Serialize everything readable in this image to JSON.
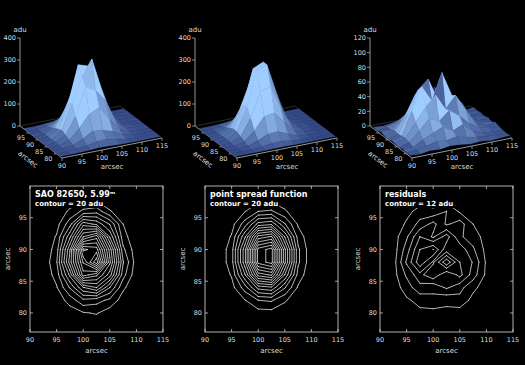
{
  "chart_data": [
    {
      "type": "surface",
      "title": "SAO 82650, 5.99ᵐ",
      "subtitle": "contour = 20 adu",
      "xlabel": "arcsec",
      "ylabel": "arcsec",
      "zlabel": "adu",
      "x": [
        90,
        92.5,
        95,
        97.5,
        100,
        102.5,
        105,
        107.5,
        110,
        112.5,
        115
      ],
      "y": [
        78,
        80,
        82,
        84,
        86,
        88,
        90,
        92,
        94,
        96,
        98
      ],
      "z": [
        [
          1,
          0,
          2,
          3,
          6,
          4,
          2,
          1,
          0,
          1,
          0
        ],
        [
          0,
          2,
          4,
          10,
          18,
          22,
          9,
          3,
          1,
          0,
          1
        ],
        [
          2,
          1,
          8,
          28,
          55,
          48,
          35,
          10,
          2,
          0,
          0
        ],
        [
          1,
          3,
          18,
          62,
          118,
          140,
          80,
          24,
          4,
          1,
          0
        ],
        [
          0,
          5,
          28,
          105,
          230,
          205,
          150,
          48,
          6,
          2,
          1
        ],
        [
          2,
          4,
          38,
          150,
          262,
          335,
          185,
          62,
          9,
          1,
          0
        ],
        [
          1,
          3,
          30,
          138,
          305,
          290,
          172,
          45,
          7,
          0,
          1
        ],
        [
          0,
          4,
          22,
          95,
          200,
          232,
          118,
          28,
          5,
          2,
          0
        ],
        [
          2,
          1,
          12,
          52,
          132,
          115,
          78,
          20,
          3,
          0,
          1
        ],
        [
          0,
          2,
          6,
          24,
          45,
          52,
          22,
          8,
          1,
          1,
          0
        ],
        [
          1,
          0,
          2,
          6,
          14,
          12,
          5,
          2,
          0,
          0,
          0
        ]
      ],
      "xlim": [
        90,
        115
      ],
      "ylim": [
        77,
        100
      ],
      "zlim": [
        0,
        400
      ],
      "xticks": [
        90,
        95,
        100,
        105,
        110,
        115
      ],
      "yticks": [
        80,
        85,
        90,
        95
      ],
      "zticks": [
        0,
        100,
        200,
        300,
        400
      ],
      "contour_step": 20
    },
    {
      "type": "surface",
      "title": "point spread function",
      "subtitle": "contour = 20 adu",
      "xlabel": "arcsec",
      "ylabel": "arcsec",
      "zlabel": "adu",
      "x": [
        90,
        92.5,
        95,
        97.5,
        100,
        102.5,
        105,
        107.5,
        110,
        112.5,
        115
      ],
      "y": [
        78,
        80,
        82,
        84,
        86,
        88,
        90,
        92,
        94,
        96,
        98
      ],
      "z": [
        [
          0,
          0,
          0,
          1,
          2,
          2,
          1,
          0,
          0,
          0,
          0
        ],
        [
          0,
          0,
          1,
          5,
          11,
          12,
          6,
          2,
          0,
          0,
          0
        ],
        [
          0,
          1,
          4,
          19,
          40,
          43,
          23,
          6,
          1,
          0,
          0
        ],
        [
          0,
          1,
          12,
          50,
          108,
          116,
          62,
          17,
          2,
          0,
          0
        ],
        [
          0,
          3,
          22,
          97,
          208,
          223,
          119,
          32,
          4,
          0,
          0
        ],
        [
          0,
          4,
          31,
          134,
          288,
          309,
          165,
          44,
          6,
          0,
          0
        ],
        [
          0,
          4,
          31,
          134,
          288,
          309,
          165,
          44,
          6,
          0,
          0
        ],
        [
          0,
          3,
          22,
          97,
          208,
          223,
          119,
          32,
          4,
          0,
          0
        ],
        [
          0,
          1,
          12,
          50,
          108,
          116,
          62,
          17,
          2,
          0,
          0
        ],
        [
          0,
          1,
          4,
          19,
          40,
          43,
          23,
          6,
          1,
          0,
          0
        ],
        [
          0,
          0,
          1,
          5,
          11,
          12,
          6,
          2,
          0,
          0,
          0
        ]
      ],
      "xlim": [
        90,
        115
      ],
      "ylim": [
        77,
        100
      ],
      "zlim": [
        0,
        400
      ],
      "xticks": [
        90,
        95,
        100,
        105,
        110,
        115
      ],
      "yticks": [
        80,
        85,
        90,
        95
      ],
      "zticks": [
        0,
        100,
        200,
        300,
        400
      ],
      "contour_step": 20
    },
    {
      "type": "surface",
      "title": "residuals",
      "subtitle": "contour = 12 adu",
      "xlabel": "arcsec",
      "ylabel": "arcsec",
      "zlabel": "adu",
      "x": [
        90,
        92.5,
        95,
        97.5,
        100,
        102.5,
        105,
        107.5,
        110,
        112.5,
        115
      ],
      "y": [
        78,
        80,
        82,
        84,
        86,
        88,
        90,
        92,
        94,
        96,
        98
      ],
      "z": [
        [
          2,
          1,
          3,
          2,
          4,
          3,
          1,
          2,
          0,
          1,
          2
        ],
        [
          1,
          3,
          5,
          9,
          7,
          10,
          6,
          4,
          2,
          1,
          0
        ],
        [
          3,
          2,
          10,
          16,
          22,
          14,
          20,
          8,
          3,
          2,
          1
        ],
        [
          1,
          5,
          18,
          32,
          26,
          38,
          28,
          15,
          6,
          3,
          2
        ],
        [
          2,
          7,
          26,
          44,
          58,
          36,
          52,
          30,
          9,
          2,
          4
        ],
        [
          3,
          6,
          38,
          68,
          46,
          82,
          48,
          35,
          10,
          4,
          1
        ],
        [
          1,
          5,
          30,
          60,
          72,
          40,
          44,
          26,
          8,
          2,
          3
        ],
        [
          2,
          6,
          22,
          48,
          34,
          54,
          26,
          18,
          7,
          3,
          1
        ],
        [
          4,
          3,
          14,
          28,
          40,
          22,
          30,
          12,
          5,
          2,
          2
        ],
        [
          1,
          3,
          8,
          17,
          15,
          24,
          10,
          7,
          3,
          2,
          1
        ],
        [
          2,
          1,
          3,
          5,
          4,
          6,
          3,
          2,
          1,
          0,
          2
        ]
      ],
      "xlim": [
        90,
        115
      ],
      "ylim": [
        77,
        100
      ],
      "zlim": [
        0,
        120
      ],
      "xticks": [
        90,
        95,
        100,
        105,
        110,
        115
      ],
      "yticks": [
        80,
        85,
        90,
        95
      ],
      "zticks": [
        0,
        20,
        40,
        60,
        80,
        100,
        120
      ],
      "contour_step": 12
    }
  ]
}
